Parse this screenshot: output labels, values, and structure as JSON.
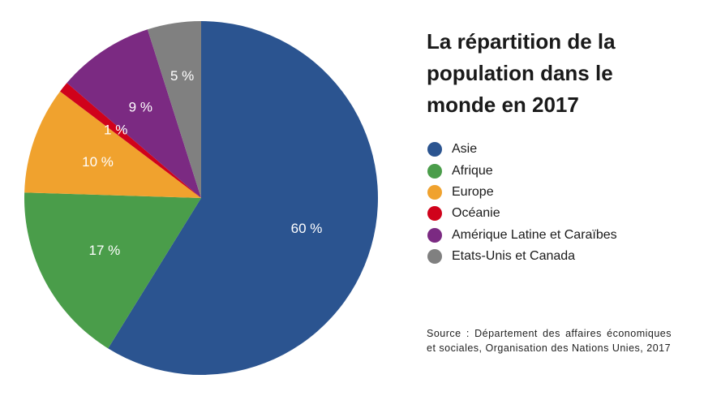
{
  "chart_data": {
    "type": "pie",
    "title": "La répartition de la population dans le monde en 2017",
    "categories": [
      "Asie",
      "Afrique",
      "Europe",
      "Océanie",
      "Amérique Latine et Caraïbes",
      "Etats-Unis et Canada"
    ],
    "values": [
      60,
      17,
      10,
      1,
      9,
      5
    ],
    "value_labels": [
      "60 %",
      "17 %",
      "10 %",
      "1 %",
      "9 %",
      "5 %"
    ],
    "colors": [
      "#2b5490",
      "#4a9d4a",
      "#f0a22e",
      "#d0021b",
      "#7b2a82",
      "#808080"
    ],
    "start": "top, clockwise",
    "legend_position": "right"
  },
  "title_lines": [
    "La répartition de la",
    "population dans le",
    "monde en 2017"
  ],
  "source": "Source : Département des affaires économiques et sociales, Organisation des Nations Unies, 2017"
}
